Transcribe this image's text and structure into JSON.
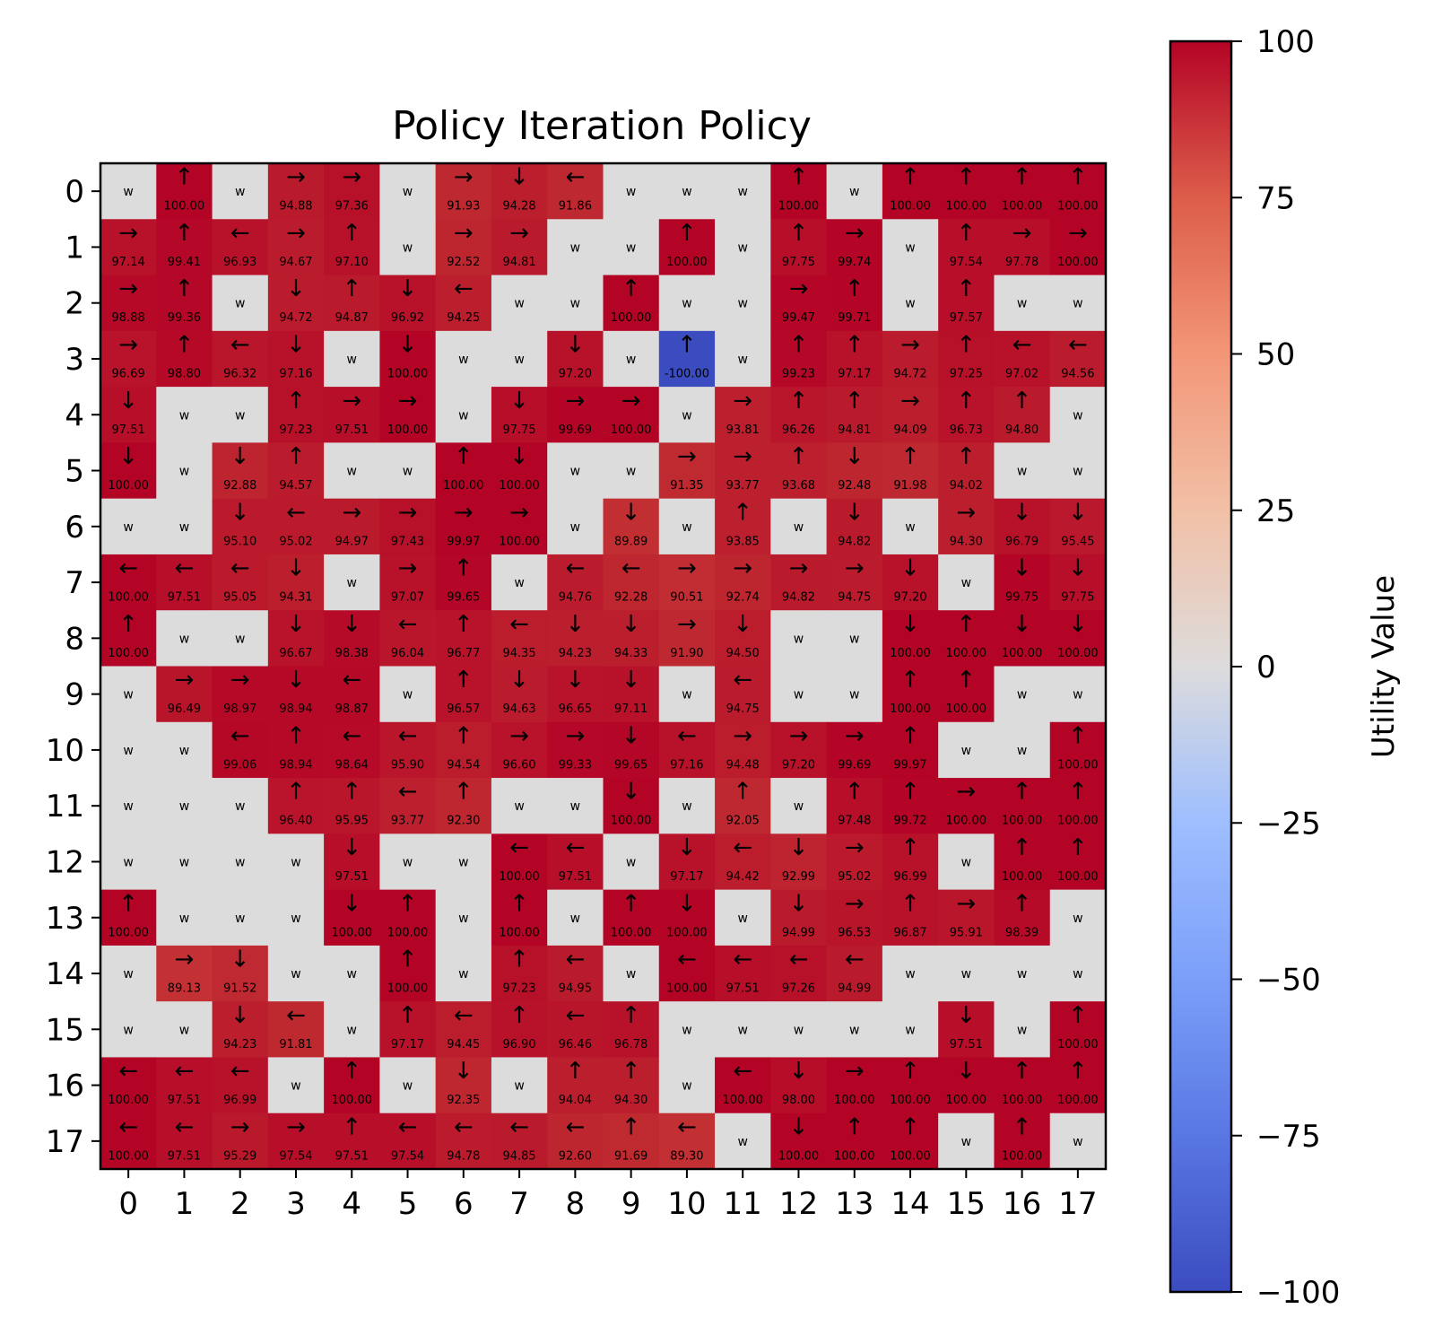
{
  "chart_data": {
    "type": "heatmap",
    "title": "Policy Iteration Policy",
    "xlabel": "",
    "ylabel": "",
    "x_ticks": [
      "0",
      "1",
      "2",
      "3",
      "4",
      "5",
      "6",
      "7",
      "8",
      "9",
      "10",
      "11",
      "12",
      "13",
      "14",
      "15",
      "16",
      "17"
    ],
    "y_ticks": [
      "0",
      "1",
      "2",
      "3",
      "4",
      "5",
      "6",
      "7",
      "8",
      "9",
      "10",
      "11",
      "12",
      "13",
      "14",
      "15",
      "16",
      "17"
    ],
    "wall_label": "w",
    "colormap": "coolwarm",
    "wall_color": "#dddcdc",
    "colorbar": {
      "label": "Utility Value",
      "range": [
        -100,
        100
      ],
      "ticks": [
        "100",
        "75",
        "50",
        "25",
        "0",
        "−25",
        "−50",
        "−75",
        "−100"
      ]
    },
    "grid": [
      [
        [
          "W"
        ],
        [
          "U",
          "100.00"
        ],
        [
          "W"
        ],
        [
          "R",
          "94.88"
        ],
        [
          "R",
          "97.36"
        ],
        [
          "W"
        ],
        [
          "R",
          "91.93"
        ],
        [
          "D",
          "94.28"
        ],
        [
          "L",
          "91.86"
        ],
        [
          "W"
        ],
        [
          "W"
        ],
        [
          "W"
        ],
        [
          "U",
          "100.00"
        ],
        [
          "W"
        ],
        [
          "U",
          "100.00"
        ],
        [
          "U",
          "100.00"
        ],
        [
          "U",
          "100.00"
        ],
        [
          "U",
          "100.00"
        ]
      ],
      [
        [
          "R",
          "97.14"
        ],
        [
          "U",
          "99.41"
        ],
        [
          "L",
          "96.93"
        ],
        [
          "R",
          "94.67"
        ],
        [
          "U",
          "97.10"
        ],
        [
          "W"
        ],
        [
          "R",
          "92.52"
        ],
        [
          "R",
          "94.81"
        ],
        [
          "W"
        ],
        [
          "W"
        ],
        [
          "U",
          "100.00"
        ],
        [
          "W"
        ],
        [
          "U",
          "97.75"
        ],
        [
          "R",
          "99.74"
        ],
        [
          "W"
        ],
        [
          "U",
          "97.54"
        ],
        [
          "R",
          "97.78"
        ],
        [
          "R",
          "100.00"
        ]
      ],
      [
        [
          "R",
          "98.88"
        ],
        [
          "U",
          "99.36"
        ],
        [
          "W"
        ],
        [
          "D",
          "94.72"
        ],
        [
          "U",
          "94.87"
        ],
        [
          "D",
          "96.92"
        ],
        [
          "L",
          "94.25"
        ],
        [
          "W"
        ],
        [
          "W"
        ],
        [
          "U",
          "100.00"
        ],
        [
          "W"
        ],
        [
          "W"
        ],
        [
          "R",
          "99.47"
        ],
        [
          "U",
          "99.71"
        ],
        [
          "W"
        ],
        [
          "U",
          "97.57"
        ],
        [
          "W"
        ],
        [
          "W"
        ]
      ],
      [
        [
          "R",
          "96.69"
        ],
        [
          "U",
          "98.80"
        ],
        [
          "L",
          "96.32"
        ],
        [
          "D",
          "97.16"
        ],
        [
          "W"
        ],
        [
          "D",
          "100.00"
        ],
        [
          "W"
        ],
        [
          "W"
        ],
        [
          "D",
          "97.20"
        ],
        [
          "W"
        ],
        [
          "U",
          "-100.00"
        ],
        [
          "W"
        ],
        [
          "U",
          "99.23"
        ],
        [
          "U",
          "97.17"
        ],
        [
          "R",
          "94.72"
        ],
        [
          "U",
          "97.25"
        ],
        [
          "L",
          "97.02"
        ],
        [
          "L",
          "94.56"
        ]
      ],
      [
        [
          "D",
          "97.51"
        ],
        [
          "W"
        ],
        [
          "W"
        ],
        [
          "U",
          "97.23"
        ],
        [
          "R",
          "97.51"
        ],
        [
          "R",
          "100.00"
        ],
        [
          "W"
        ],
        [
          "D",
          "97.75"
        ],
        [
          "R",
          "99.69"
        ],
        [
          "R",
          "100.00"
        ],
        [
          "W"
        ],
        [
          "R",
          "93.81"
        ],
        [
          "U",
          "96.26"
        ],
        [
          "U",
          "94.81"
        ],
        [
          "R",
          "94.09"
        ],
        [
          "U",
          "96.73"
        ],
        [
          "U",
          "94.80"
        ],
        [
          "W"
        ]
      ],
      [
        [
          "D",
          "100.00"
        ],
        [
          "W"
        ],
        [
          "D",
          "92.88"
        ],
        [
          "U",
          "94.57"
        ],
        [
          "W"
        ],
        [
          "W"
        ],
        [
          "U",
          "100.00"
        ],
        [
          "D",
          "100.00"
        ],
        [
          "W"
        ],
        [
          "W"
        ],
        [
          "R",
          "91.35"
        ],
        [
          "R",
          "93.77"
        ],
        [
          "U",
          "93.68"
        ],
        [
          "D",
          "92.48"
        ],
        [
          "U",
          "91.98"
        ],
        [
          "U",
          "94.02"
        ],
        [
          "W"
        ],
        [
          "W"
        ]
      ],
      [
        [
          "W"
        ],
        [
          "W"
        ],
        [
          "D",
          "95.10"
        ],
        [
          "L",
          "95.02"
        ],
        [
          "R",
          "94.97"
        ],
        [
          "R",
          "97.43"
        ],
        [
          "R",
          "99.97"
        ],
        [
          "R",
          "100.00"
        ],
        [
          "W"
        ],
        [
          "D",
          "89.89"
        ],
        [
          "W"
        ],
        [
          "U",
          "93.85"
        ],
        [
          "W"
        ],
        [
          "D",
          "94.82"
        ],
        [
          "W"
        ],
        [
          "R",
          "94.30"
        ],
        [
          "D",
          "96.79"
        ],
        [
          "D",
          "95.45"
        ]
      ],
      [
        [
          "L",
          "100.00"
        ],
        [
          "L",
          "97.51"
        ],
        [
          "L",
          "95.05"
        ],
        [
          "D",
          "94.31"
        ],
        [
          "W"
        ],
        [
          "R",
          "97.07"
        ],
        [
          "U",
          "99.65"
        ],
        [
          "W"
        ],
        [
          "L",
          "94.76"
        ],
        [
          "L",
          "92.28"
        ],
        [
          "R",
          "90.51"
        ],
        [
          "R",
          "92.74"
        ],
        [
          "R",
          "94.82"
        ],
        [
          "R",
          "94.75"
        ],
        [
          "D",
          "97.20"
        ],
        [
          "W"
        ],
        [
          "D",
          "99.75"
        ],
        [
          "D",
          "97.75"
        ]
      ],
      [
        [
          "U",
          "100.00"
        ],
        [
          "W"
        ],
        [
          "W"
        ],
        [
          "D",
          "96.67"
        ],
        [
          "D",
          "98.38"
        ],
        [
          "L",
          "96.04"
        ],
        [
          "U",
          "96.77"
        ],
        [
          "L",
          "94.35"
        ],
        [
          "D",
          "94.23"
        ],
        [
          "D",
          "94.33"
        ],
        [
          "R",
          "91.90"
        ],
        [
          "D",
          "94.50"
        ],
        [
          "W"
        ],
        [
          "W"
        ],
        [
          "D",
          "100.00"
        ],
        [
          "U",
          "100.00"
        ],
        [
          "D",
          "100.00"
        ],
        [
          "D",
          "100.00"
        ]
      ],
      [
        [
          "W"
        ],
        [
          "R",
          "96.49"
        ],
        [
          "R",
          "98.97"
        ],
        [
          "D",
          "98.94"
        ],
        [
          "L",
          "98.87"
        ],
        [
          "W"
        ],
        [
          "U",
          "96.57"
        ],
        [
          "D",
          "94.63"
        ],
        [
          "D",
          "96.65"
        ],
        [
          "D",
          "97.11"
        ],
        [
          "W"
        ],
        [
          "L",
          "94.75"
        ],
        [
          "W"
        ],
        [
          "W"
        ],
        [
          "U",
          "100.00"
        ],
        [
          "U",
          "100.00"
        ],
        [
          "W"
        ],
        [
          "W"
        ]
      ],
      [
        [
          "W"
        ],
        [
          "W"
        ],
        [
          "L",
          "99.06"
        ],
        [
          "U",
          "98.94"
        ],
        [
          "L",
          "98.64"
        ],
        [
          "L",
          "95.90"
        ],
        [
          "U",
          "94.54"
        ],
        [
          "R",
          "96.60"
        ],
        [
          "R",
          "99.33"
        ],
        [
          "D",
          "99.65"
        ],
        [
          "L",
          "97.16"
        ],
        [
          "R",
          "94.48"
        ],
        [
          "R",
          "97.20"
        ],
        [
          "R",
          "99.69"
        ],
        [
          "U",
          "99.97"
        ],
        [
          "W"
        ],
        [
          "W"
        ],
        [
          "U",
          "100.00"
        ]
      ],
      [
        [
          "W"
        ],
        [
          "W"
        ],
        [
          "W"
        ],
        [
          "U",
          "96.40"
        ],
        [
          "U",
          "95.95"
        ],
        [
          "L",
          "93.77"
        ],
        [
          "U",
          "92.30"
        ],
        [
          "W"
        ],
        [
          "W"
        ],
        [
          "D",
          "100.00"
        ],
        [
          "W"
        ],
        [
          "U",
          "92.05"
        ],
        [
          "W"
        ],
        [
          "U",
          "97.48"
        ],
        [
          "U",
          "99.72"
        ],
        [
          "R",
          "100.00"
        ],
        [
          "U",
          "100.00"
        ],
        [
          "U",
          "100.00"
        ]
      ],
      [
        [
          "W"
        ],
        [
          "W"
        ],
        [
          "W"
        ],
        [
          "W"
        ],
        [
          "D",
          "97.51"
        ],
        [
          "W"
        ],
        [
          "W"
        ],
        [
          "L",
          "100.00"
        ],
        [
          "L",
          "97.51"
        ],
        [
          "W"
        ],
        [
          "D",
          "97.17"
        ],
        [
          "L",
          "94.42"
        ],
        [
          "D",
          "92.99"
        ],
        [
          "R",
          "95.02"
        ],
        [
          "U",
          "96.99"
        ],
        [
          "W"
        ],
        [
          "U",
          "100.00"
        ],
        [
          "U",
          "100.00"
        ]
      ],
      [
        [
          "U",
          "100.00"
        ],
        [
          "W"
        ],
        [
          "W"
        ],
        [
          "W"
        ],
        [
          "D",
          "100.00"
        ],
        [
          "U",
          "100.00"
        ],
        [
          "W"
        ],
        [
          "U",
          "100.00"
        ],
        [
          "W"
        ],
        [
          "U",
          "100.00"
        ],
        [
          "D",
          "100.00"
        ],
        [
          "W"
        ],
        [
          "D",
          "94.99"
        ],
        [
          "R",
          "96.53"
        ],
        [
          "U",
          "96.87"
        ],
        [
          "R",
          "95.91"
        ],
        [
          "U",
          "98.39"
        ],
        [
          "W"
        ]
      ],
      [
        [
          "W"
        ],
        [
          "R",
          "89.13"
        ],
        [
          "D",
          "91.52"
        ],
        [
          "W"
        ],
        [
          "W"
        ],
        [
          "U",
          "100.00"
        ],
        [
          "W"
        ],
        [
          "U",
          "97.23"
        ],
        [
          "L",
          "94.95"
        ],
        [
          "W"
        ],
        [
          "L",
          "100.00"
        ],
        [
          "L",
          "97.51"
        ],
        [
          "L",
          "97.26"
        ],
        [
          "L",
          "94.99"
        ],
        [
          "W"
        ],
        [
          "W"
        ],
        [
          "W"
        ],
        [
          "W"
        ]
      ],
      [
        [
          "W"
        ],
        [
          "W"
        ],
        [
          "D",
          "94.23"
        ],
        [
          "L",
          "91.81"
        ],
        [
          "W"
        ],
        [
          "U",
          "97.17"
        ],
        [
          "L",
          "94.45"
        ],
        [
          "U",
          "96.90"
        ],
        [
          "L",
          "96.46"
        ],
        [
          "U",
          "96.78"
        ],
        [
          "W"
        ],
        [
          "W"
        ],
        [
          "W"
        ],
        [
          "W"
        ],
        [
          "W"
        ],
        [
          "D",
          "97.51"
        ],
        [
          "W"
        ],
        [
          "U",
          "100.00"
        ]
      ],
      [
        [
          "L",
          "100.00"
        ],
        [
          "L",
          "97.51"
        ],
        [
          "L",
          "96.99"
        ],
        [
          "W"
        ],
        [
          "U",
          "100.00"
        ],
        [
          "W"
        ],
        [
          "D",
          "92.35"
        ],
        [
          "W"
        ],
        [
          "U",
          "94.04"
        ],
        [
          "U",
          "94.30"
        ],
        [
          "W"
        ],
        [
          "L",
          "100.00"
        ],
        [
          "D",
          "98.00"
        ],
        [
          "R",
          "100.00"
        ],
        [
          "U",
          "100.00"
        ],
        [
          "D",
          "100.00"
        ],
        [
          "U",
          "100.00"
        ],
        [
          "U",
          "100.00"
        ]
      ],
      [
        [
          "L",
          "100.00"
        ],
        [
          "L",
          "97.51"
        ],
        [
          "R",
          "95.29"
        ],
        [
          "R",
          "97.54"
        ],
        [
          "U",
          "97.51"
        ],
        [
          "L",
          "97.54"
        ],
        [
          "L",
          "94.78"
        ],
        [
          "L",
          "94.85"
        ],
        [
          "L",
          "92.60"
        ],
        [
          "U",
          "91.69"
        ],
        [
          "L",
          "89.30"
        ],
        [
          "W"
        ],
        [
          "D",
          "100.00"
        ],
        [
          "U",
          "100.00"
        ],
        [
          "U",
          "100.00"
        ],
        [
          "W"
        ],
        [
          "U",
          "100.00"
        ],
        [
          "W"
        ]
      ]
    ]
  }
}
